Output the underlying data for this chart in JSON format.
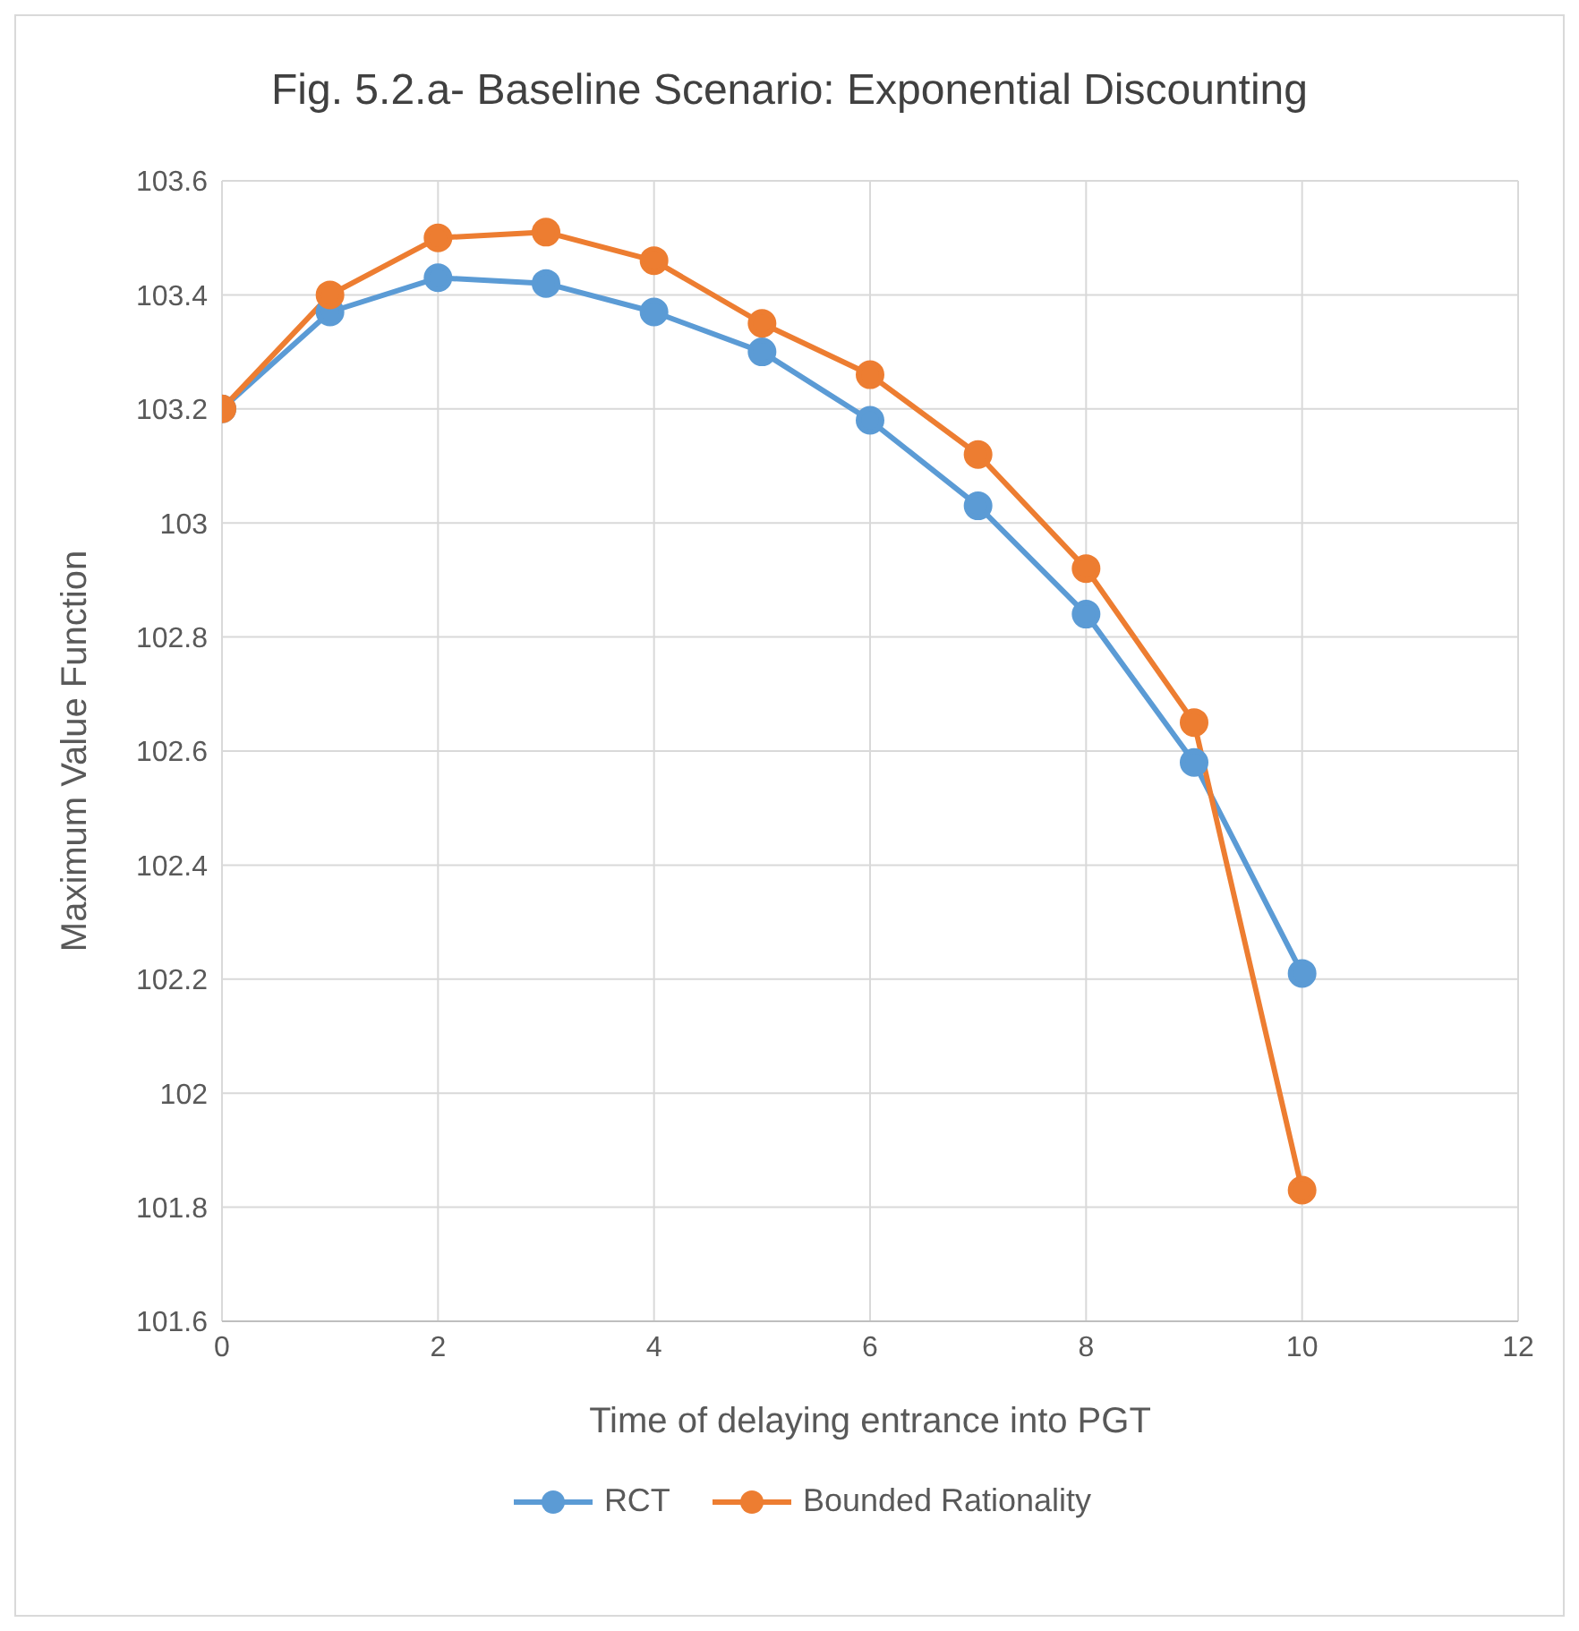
{
  "chart_data": {
    "type": "line",
    "title": "Fig. 5.2.a- Baseline Scenario: Exponential Discounting",
    "xlabel": "Time of delaying  entrance into PGT",
    "ylabel": "Maximum Value Function",
    "x": [
      0,
      1,
      2,
      3,
      4,
      5,
      6,
      7,
      8,
      9,
      10
    ],
    "series": [
      {
        "name": "RCT",
        "color": "#5b9bd5",
        "values": [
          103.2,
          103.37,
          103.43,
          103.42,
          103.37,
          103.3,
          103.18,
          103.03,
          102.84,
          102.58,
          102.21
        ]
      },
      {
        "name": "Bounded Rationality",
        "color": "#ed7d31",
        "values": [
          103.2,
          103.4,
          103.5,
          103.51,
          103.46,
          103.35,
          103.26,
          103.12,
          102.92,
          102.65,
          101.83
        ]
      }
    ],
    "xlim": [
      0,
      12
    ],
    "xticks": [
      0,
      2,
      4,
      6,
      8,
      10,
      12
    ],
    "ylim": [
      101.6,
      103.6
    ],
    "yticks": [
      101.6,
      101.8,
      102,
      102.2,
      102.4,
      102.6,
      102.8,
      103,
      103.2,
      103.4,
      103.6
    ],
    "grid": true,
    "legend": "bottom",
    "marker": "circle",
    "line_style": "solid"
  }
}
